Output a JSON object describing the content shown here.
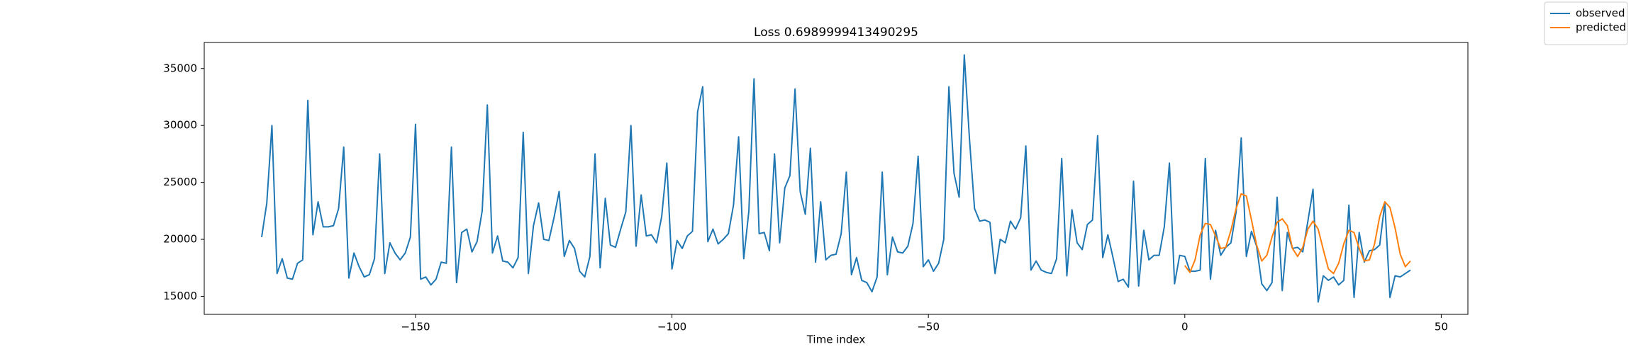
{
  "chart_data": {
    "type": "line",
    "title": "Loss 0.6989999413490295",
    "x_label": "Time index",
    "xlim": [
      -191.2,
      55.2
    ],
    "ylim": [
      13415,
      37285
    ],
    "xticks": [
      {
        "value": -150,
        "label": "−150"
      },
      {
        "value": -100,
        "label": "−100"
      },
      {
        "value": -50,
        "label": "−50"
      },
      0,
      50
    ],
    "yticks": [
      15000,
      20000,
      25000,
      30000,
      35000
    ],
    "grid": false,
    "legend": "outside upper right",
    "series": [
      {
        "name": "observed",
        "color": "#1f77b4",
        "x": [
          -180,
          -179,
          -178,
          -177,
          -176,
          -175,
          -174,
          -173,
          -172,
          -171,
          -170,
          -169,
          -168,
          -167,
          -166,
          -165,
          -164,
          -163,
          -162,
          -161,
          -160,
          -159,
          -158,
          -157,
          -156,
          -155,
          -154,
          -153,
          -152,
          -151,
          -150,
          -149,
          -148,
          -147,
          -146,
          -145,
          -144,
          -143,
          -142,
          -141,
          -140,
          -139,
          -138,
          -137,
          -136,
          -135,
          -134,
          -133,
          -132,
          -131,
          -130,
          -129,
          -128,
          -127,
          -126,
          -125,
          -124,
          -123,
          -122,
          -121,
          -120,
          -119,
          -118,
          -117,
          -116,
          -115,
          -114,
          -113,
          -112,
          -111,
          -110,
          -109,
          -108,
          -107,
          -106,
          -105,
          -104,
          -103,
          -102,
          -101,
          -100,
          -99,
          -98,
          -97,
          -96,
          -95,
          -94,
          -93,
          -92,
          -91,
          -90,
          -89,
          -88,
          -87,
          -86,
          -85,
          -84,
          -83,
          -82,
          -81,
          -80,
          -79,
          -78,
          -77,
          -76,
          -75,
          -74,
          -73,
          -72,
          -71,
          -70,
          -69,
          -68,
          -67,
          -66,
          -65,
          -64,
          -63,
          -62,
          -61,
          -60,
          -59,
          -58,
          -57,
          -56,
          -55,
          -54,
          -53,
          -52,
          -51,
          -50,
          -49,
          -48,
          -47,
          -46,
          -45,
          -44,
          -43,
          -42,
          -41,
          -40,
          -39,
          -38,
          -37,
          -36,
          -35,
          -34,
          -33,
          -32,
          -31,
          -30,
          -29,
          -28,
          -27,
          -26,
          -25,
          -24,
          -23,
          -22,
          -21,
          -20,
          -19,
          -18,
          -17,
          -16,
          -15,
          -14,
          -13,
          -12,
          -11,
          -10,
          -9,
          -8,
          -7,
          -6,
          -5,
          -4,
          -3,
          -2,
          -1,
          0,
          1,
          2,
          3,
          4,
          5,
          6,
          7,
          8,
          9,
          10,
          11,
          12,
          13,
          14,
          15,
          16,
          17,
          18,
          19,
          20,
          21,
          22,
          23,
          24,
          25,
          26,
          27,
          28,
          29,
          30,
          31,
          32,
          33,
          34,
          35,
          36,
          37,
          38,
          39,
          40,
          41,
          42,
          43,
          44
        ],
        "values": [
          20200,
          23200,
          30000,
          17000,
          18300,
          16600,
          16500,
          17900,
          18200,
          32200,
          20400,
          23300,
          21100,
          21100,
          21200,
          22700,
          28100,
          16600,
          18800,
          17600,
          16700,
          16900,
          18300,
          27500,
          17000,
          19700,
          18800,
          18200,
          18800,
          20200,
          30100,
          16500,
          16700,
          16000,
          16500,
          18000,
          17900,
          28100,
          16200,
          20600,
          20900,
          18900,
          19800,
          22500,
          31800,
          18800,
          20300,
          18100,
          18000,
          17500,
          18400,
          29400,
          17000,
          21200,
          23200,
          20000,
          19900,
          21900,
          24200,
          18500,
          19900,
          19200,
          17200,
          16700,
          18500,
          27500,
          17500,
          23600,
          19500,
          19300,
          20900,
          22400,
          30000,
          19400,
          23900,
          20300,
          20400,
          19700,
          22000,
          26700,
          17400,
          19900,
          19200,
          20300,
          20700,
          31200,
          33400,
          19800,
          20900,
          19600,
          20000,
          20500,
          23000,
          29000,
          18300,
          22500,
          34100,
          20500,
          20600,
          19000,
          27500,
          19700,
          24500,
          25600,
          33200,
          24200,
          22200,
          28000,
          18000,
          23300,
          18200,
          18600,
          18700,
          20500,
          25900,
          16900,
          18400,
          16400,
          16200,
          15400,
          16700,
          25900,
          16900,
          20200,
          18900,
          18800,
          19400,
          21400,
          27300,
          17600,
          18200,
          17200,
          17900,
          20000,
          33400,
          25800,
          23700,
          36200,
          28900,
          22700,
          21600,
          21700,
          21500,
          17000,
          20000,
          19700,
          21600,
          20900,
          21900,
          28200,
          17300,
          18100,
          17300,
          17100,
          17000,
          18300,
          27100,
          16800,
          22600,
          19700,
          19100,
          21300,
          21700,
          29100,
          18400,
          20400,
          18400,
          16300,
          16500,
          15800,
          25100,
          15900,
          20800,
          18200,
          18600,
          18600,
          21100,
          26700,
          16100,
          18600,
          18500,
          17200,
          17200,
          17300,
          27100,
          16500,
          20800,
          18600,
          19300,
          19700,
          22400,
          28900,
          18500,
          20700,
          19400,
          16100,
          15500,
          16200,
          23700,
          15500,
          20600,
          19200,
          19300,
          18900,
          21600,
          24400,
          14500,
          16800,
          16400,
          16700,
          16000,
          16400,
          23000,
          14900,
          20600,
          18000,
          19000,
          19100,
          19500,
          23200,
          14900,
          16800,
          16700,
          17000,
          17300
        ]
      },
      {
        "name": "predicted",
        "color": "#ff7f0e",
        "x": [
          0,
          1,
          2,
          3,
          4,
          5,
          6,
          7,
          8,
          9,
          10,
          11,
          12,
          13,
          14,
          15,
          16,
          17,
          18,
          19,
          20,
          21,
          22,
          23,
          24,
          25,
          26,
          27,
          28,
          29,
          30,
          31,
          32,
          33,
          34,
          35,
          36,
          37,
          38,
          39,
          40,
          41,
          42,
          43,
          44
        ],
        "values": [
          17700,
          17100,
          18200,
          20400,
          21400,
          21300,
          20300,
          19200,
          19300,
          20800,
          22700,
          24000,
          23800,
          21700,
          19500,
          18100,
          18600,
          20200,
          21500,
          21800,
          21200,
          19200,
          18500,
          19300,
          20900,
          21600,
          20900,
          19100,
          17400,
          17000,
          17900,
          19600,
          20800,
          20600,
          19200,
          18100,
          18200,
          19600,
          22000,
          23300,
          22800,
          21000,
          18700,
          17600,
          18100
        ]
      }
    ]
  }
}
